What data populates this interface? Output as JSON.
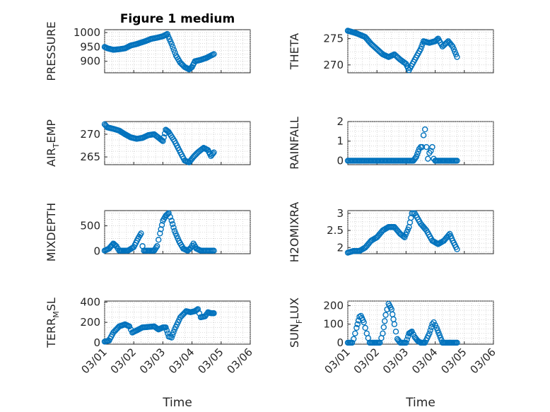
{
  "figure": {
    "title": "Figure 1 medium",
    "xlabel": "Time"
  },
  "colors": {
    "marker": "#0072bd",
    "axis": "#262626",
    "grid": "#bdbdbd"
  },
  "chart_data": [
    {
      "type": "scatter",
      "ylabel": "PRESSURE",
      "ylim": [
        860,
        1010
      ],
      "yticks": [
        900,
        950,
        1000
      ],
      "xlim": [
        0,
        5
      ],
      "xticks": [
        0,
        1,
        2,
        3,
        4,
        5
      ],
      "xticklabels": [
        "03/01",
        "03/02",
        "03/03",
        "03/04",
        "03/05",
        "03/06"
      ],
      "show_xticklabels": false,
      "title": "Figure 1 medium",
      "anchors": [
        [
          0,
          950
        ],
        [
          0.1,
          945
        ],
        [
          0.3,
          940
        ],
        [
          0.5,
          942
        ],
        [
          0.7,
          945
        ],
        [
          0.9,
          955
        ],
        [
          1.1,
          960
        ],
        [
          1.4,
          970
        ],
        [
          1.6,
          978
        ],
        [
          1.8,
          982
        ],
        [
          2.0,
          987
        ],
        [
          2.15,
          995
        ],
        [
          2.3,
          960
        ],
        [
          2.45,
          920
        ],
        [
          2.6,
          895
        ],
        [
          2.75,
          880
        ],
        [
          2.9,
          872
        ],
        [
          3.0,
          880
        ],
        [
          3.1,
          900
        ],
        [
          3.3,
          905
        ],
        [
          3.5,
          912
        ],
        [
          3.75,
          925
        ]
      ],
      "step": 0.04
    },
    {
      "type": "scatter",
      "ylabel": "THETA",
      "ylim": [
        268.5,
        276.7
      ],
      "yticks": [
        270,
        275
      ],
      "xlim": [
        0,
        5
      ],
      "xticks": [
        0,
        1,
        2,
        3,
        4,
        5
      ],
      "xticklabels": [
        "03/01",
        "03/02",
        "03/03",
        "03/04",
        "03/05",
        "03/06"
      ],
      "show_xticklabels": false,
      "anchors": [
        [
          0,
          276.5
        ],
        [
          0.3,
          276
        ],
        [
          0.6,
          275.3
        ],
        [
          0.8,
          274
        ],
        [
          1.0,
          273
        ],
        [
          1.2,
          272
        ],
        [
          1.4,
          271.5
        ],
        [
          1.6,
          272
        ],
        [
          1.8,
          271
        ],
        [
          2.0,
          270.2
        ],
        [
          2.1,
          269
        ],
        [
          2.3,
          271
        ],
        [
          2.5,
          273
        ],
        [
          2.6,
          274.5
        ],
        [
          2.8,
          274.2
        ],
        [
          3.0,
          274.5
        ],
        [
          3.1,
          275
        ],
        [
          3.25,
          273.5
        ],
        [
          3.45,
          274.5
        ],
        [
          3.6,
          273.5
        ],
        [
          3.75,
          271.5
        ]
      ],
      "step": 0.04
    },
    {
      "type": "scatter",
      "ylabel": "AIR_TEMP",
      "ylabel_main": "AIR",
      "ylabel_sub": "T",
      "ylabel_rest": "EMP",
      "ylim": [
        263.3,
        272.8
      ],
      "yticks": [
        265,
        270
      ],
      "xlim": [
        0,
        5
      ],
      "xticks": [
        0,
        1,
        2,
        3,
        4,
        5
      ],
      "xticklabels": [
        "03/01",
        "03/02",
        "03/03",
        "03/04",
        "03/05",
        "03/06"
      ],
      "show_xticklabels": false,
      "anchors": [
        [
          0,
          272.2
        ],
        [
          0.1,
          271.5
        ],
        [
          0.3,
          271.2
        ],
        [
          0.5,
          270.8
        ],
        [
          0.7,
          270
        ],
        [
          0.9,
          269.3
        ],
        [
          1.1,
          269
        ],
        [
          1.3,
          269.2
        ],
        [
          1.5,
          269.8
        ],
        [
          1.7,
          270
        ],
        [
          1.9,
          269
        ],
        [
          2.0,
          268.5
        ],
        [
          2.1,
          271
        ],
        [
          2.2,
          270.5
        ],
        [
          2.4,
          268.5
        ],
        [
          2.6,
          266
        ],
        [
          2.75,
          264.2
        ],
        [
          2.9,
          263.8
        ],
        [
          3.05,
          265
        ],
        [
          3.2,
          266
        ],
        [
          3.4,
          267
        ],
        [
          3.55,
          266.5
        ],
        [
          3.65,
          265.2
        ],
        [
          3.75,
          266
        ]
      ],
      "step": 0.04
    },
    {
      "type": "scatter",
      "ylabel": "RAINFALL",
      "ylim": [
        -0.2,
        2
      ],
      "yticks": [
        0,
        1,
        2
      ],
      "xlim": [
        0,
        5
      ],
      "xticks": [
        0,
        1,
        2,
        3,
        4,
        5
      ],
      "xticklabels": [
        "03/01",
        "03/02",
        "03/03",
        "03/04",
        "03/05",
        "03/06"
      ],
      "show_xticklabels": false,
      "anchors": [
        [
          0,
          0
        ],
        [
          2.25,
          0
        ],
        [
          2.35,
          0.2
        ],
        [
          2.45,
          0.6
        ],
        [
          2.5,
          0.7
        ],
        [
          2.55,
          0.7
        ],
        [
          2.6,
          1.3
        ],
        [
          2.65,
          1.6
        ],
        [
          2.7,
          0.7
        ],
        [
          2.75,
          0.1
        ],
        [
          2.8,
          0.4
        ],
        [
          2.85,
          0.5
        ],
        [
          2.9,
          0.7
        ],
        [
          2.95,
          0.1
        ],
        [
          3.0,
          0
        ],
        [
          3.75,
          0
        ]
      ],
      "step": 0.04
    },
    {
      "type": "scatter",
      "ylabel": "MIXDEPTH",
      "ylim": [
        -50,
        800
      ],
      "yticks": [
        0,
        500
      ],
      "xlim": [
        0,
        5
      ],
      "xticks": [
        0,
        1,
        2,
        3,
        4,
        5
      ],
      "xticklabels": [
        "03/01",
        "03/02",
        "03/03",
        "03/04",
        "03/05",
        "03/06"
      ],
      "show_xticklabels": false,
      "anchors": [
        [
          0,
          10
        ],
        [
          0.15,
          50
        ],
        [
          0.3,
          150
        ],
        [
          0.4,
          100
        ],
        [
          0.5,
          10
        ],
        [
          0.8,
          10
        ],
        [
          1.0,
          80
        ],
        [
          1.15,
          250
        ],
        [
          1.25,
          350
        ],
        [
          1.3,
          100
        ],
        [
          1.35,
          10
        ],
        [
          1.7,
          10
        ],
        [
          1.8,
          100
        ],
        [
          1.9,
          350
        ],
        [
          2.0,
          600
        ],
        [
          2.1,
          700
        ],
        [
          2.2,
          750
        ],
        [
          2.3,
          600
        ],
        [
          2.4,
          400
        ],
        [
          2.55,
          200
        ],
        [
          2.7,
          50
        ],
        [
          2.85,
          10
        ],
        [
          2.95,
          60
        ],
        [
          3.05,
          150
        ],
        [
          3.15,
          50
        ],
        [
          3.3,
          10
        ],
        [
          3.5,
          10
        ],
        [
          3.75,
          10
        ]
      ],
      "step": 0.04
    },
    {
      "type": "scatter",
      "ylabel": "H2OMIXRA",
      "ylim": [
        1.82,
        3.08
      ],
      "yticks": [
        2,
        2.5,
        3
      ],
      "xlim": [
        0,
        5
      ],
      "xticks": [
        0,
        1,
        2,
        3,
        4,
        5
      ],
      "xticklabels": [
        "03/01",
        "03/02",
        "03/03",
        "03/04",
        "03/05",
        "03/06"
      ],
      "show_xticklabels": false,
      "anchors": [
        [
          0,
          1.85
        ],
        [
          0.2,
          1.9
        ],
        [
          0.4,
          1.9
        ],
        [
          0.6,
          2.0
        ],
        [
          0.8,
          2.2
        ],
        [
          1.0,
          2.3
        ],
        [
          1.2,
          2.5
        ],
        [
          1.4,
          2.6
        ],
        [
          1.6,
          2.6
        ],
        [
          1.8,
          2.4
        ],
        [
          1.95,
          2.3
        ],
        [
          2.1,
          2.6
        ],
        [
          2.2,
          3.0
        ],
        [
          2.3,
          3.0
        ],
        [
          2.5,
          2.7
        ],
        [
          2.7,
          2.5
        ],
        [
          2.9,
          2.2
        ],
        [
          3.1,
          2.1
        ],
        [
          3.3,
          2.2
        ],
        [
          3.5,
          2.4
        ],
        [
          3.6,
          2.2
        ],
        [
          3.75,
          1.95
        ]
      ],
      "step": 0.04
    },
    {
      "type": "scatter",
      "ylabel": "TERR_MSL",
      "ylabel_main": "TERR",
      "ylabel_sub": "M",
      "ylabel_rest": "SL",
      "ylim": [
        -15,
        410
      ],
      "yticks": [
        0,
        200,
        400
      ],
      "xlim": [
        0,
        5
      ],
      "xticks": [
        0,
        1,
        2,
        3,
        4,
        5
      ],
      "xticklabels": [
        "03/01",
        "03/02",
        "03/03",
        "03/04",
        "03/05",
        "03/06"
      ],
      "show_xticklabels": true,
      "anchors": [
        [
          0,
          10
        ],
        [
          0.15,
          20
        ],
        [
          0.3,
          100
        ],
        [
          0.5,
          160
        ],
        [
          0.7,
          180
        ],
        [
          0.85,
          160
        ],
        [
          0.95,
          100
        ],
        [
          1.1,
          120
        ],
        [
          1.3,
          150
        ],
        [
          1.5,
          155
        ],
        [
          1.7,
          160
        ],
        [
          1.85,
          130
        ],
        [
          2.0,
          150
        ],
        [
          2.1,
          150
        ],
        [
          2.2,
          60
        ],
        [
          2.3,
          50
        ],
        [
          2.4,
          130
        ],
        [
          2.6,
          250
        ],
        [
          2.8,
          310
        ],
        [
          2.95,
          300
        ],
        [
          3.1,
          310
        ],
        [
          3.2,
          330
        ],
        [
          3.3,
          250
        ],
        [
          3.45,
          260
        ],
        [
          3.55,
          300
        ],
        [
          3.65,
          290
        ],
        [
          3.75,
          290
        ]
      ],
      "step": 0.04
    },
    {
      "type": "scatter",
      "ylabel": "SUN_FLUX",
      "ylabel_main": "SUN",
      "ylabel_sub": "F",
      "ylabel_rest": "LUX",
      "ylim": [
        -8,
        225
      ],
      "yticks": [
        0,
        100,
        200
      ],
      "xlim": [
        0,
        5
      ],
      "xticks": [
        0,
        1,
        2,
        3,
        4,
        5
      ],
      "xticklabels": [
        "03/01",
        "03/02",
        "03/03",
        "03/04",
        "03/05",
        "03/06"
      ],
      "show_xticklabels": true,
      "anchors": [
        [
          0,
          0
        ],
        [
          0.15,
          0
        ],
        [
          0.2,
          20
        ],
        [
          0.3,
          80
        ],
        [
          0.4,
          140
        ],
        [
          0.45,
          145
        ],
        [
          0.55,
          110
        ],
        [
          0.65,
          50
        ],
        [
          0.75,
          0
        ],
        [
          1.1,
          0
        ],
        [
          1.2,
          50
        ],
        [
          1.3,
          150
        ],
        [
          1.4,
          210
        ],
        [
          1.5,
          180
        ],
        [
          1.6,
          100
        ],
        [
          1.7,
          20
        ],
        [
          1.8,
          0
        ],
        [
          2.0,
          0
        ],
        [
          2.1,
          50
        ],
        [
          2.2,
          60
        ],
        [
          2.3,
          30
        ],
        [
          2.4,
          10
        ],
        [
          2.5,
          0
        ],
        [
          2.65,
          0
        ],
        [
          2.8,
          50
        ],
        [
          2.9,
          100
        ],
        [
          2.95,
          110
        ],
        [
          3.05,
          80
        ],
        [
          3.15,
          40
        ],
        [
          3.25,
          0
        ],
        [
          3.75,
          0
        ]
      ],
      "step": 0.04
    }
  ]
}
